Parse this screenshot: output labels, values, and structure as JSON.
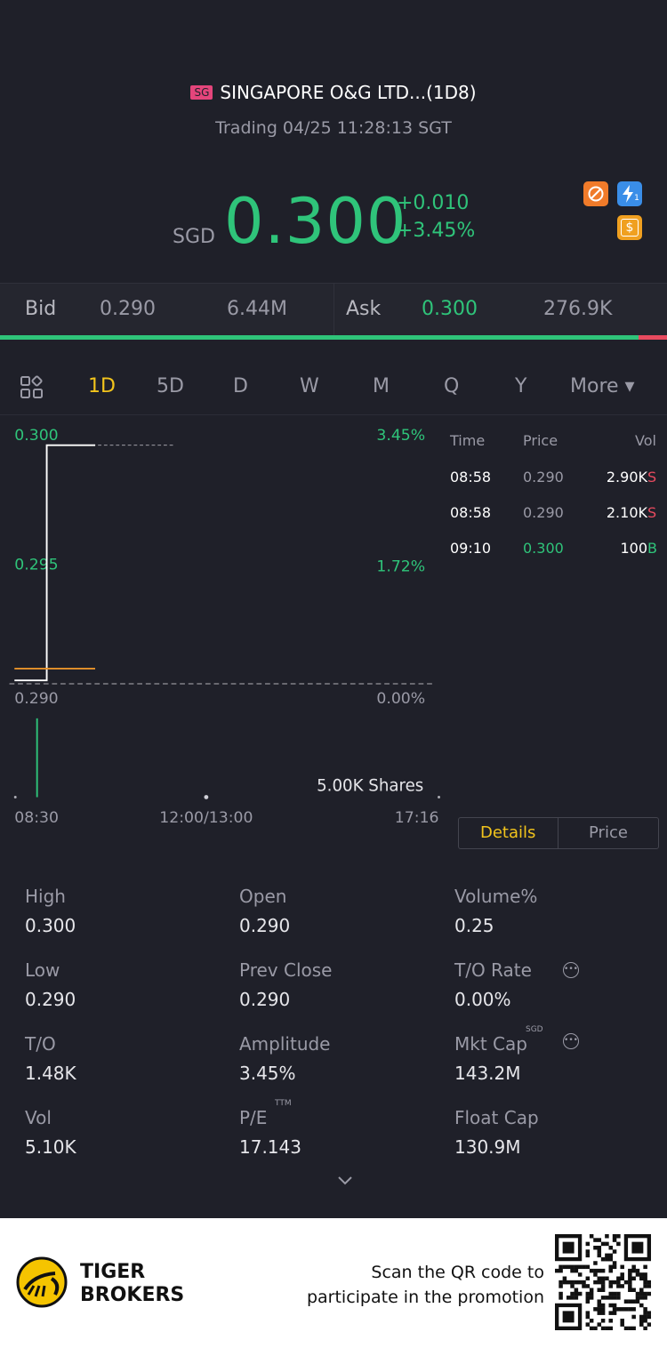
{
  "header": {
    "market_badge": "SG",
    "title": "SINGAPORE O&G LTD...(1D8)",
    "subtitle": "Trading 04/25 11:28:13 SGT"
  },
  "quote": {
    "currency": "SGD",
    "price": "0.300",
    "change": "+0.010",
    "change_pct": "+3.45%",
    "icons": [
      "no-short-icon",
      "flash-icon",
      "dollar-icon"
    ],
    "icon_flash_sub": "1",
    "icon_money_glyph": "$"
  },
  "bidask": {
    "bid_label": "Bid",
    "bid_price": "0.290",
    "bid_size": "6.44M",
    "ask_label": "Ask",
    "ask_price": "0.300",
    "ask_size": "276.9K",
    "bid_ratio": 0.957
  },
  "tabs": {
    "items": [
      "1D",
      "5D",
      "D",
      "W",
      "M",
      "Q",
      "Y",
      "More ▾"
    ],
    "active": "1D"
  },
  "chart_data": {
    "type": "line",
    "y_labels_left": [
      "0.300",
      "0.295",
      "0.290"
    ],
    "y_labels_right": [
      "3.45%",
      "1.72%",
      "0.00%"
    ],
    "x_labels": [
      "08:30",
      "12:00/13:00",
      "17:16"
    ],
    "volume_label": "5.00K Shares",
    "ylim": [
      0.29,
      0.3
    ],
    "series": [
      {
        "x": [
          "08:30",
          "08:58",
          "09:00",
          "09:10",
          "10:10"
        ],
        "values": [
          0.29,
          0.29,
          0.29,
          0.3,
          0.3
        ]
      }
    ],
    "avg_line": 0.2905,
    "prev_close": 0.29,
    "volume_bar": {
      "x": "08:58",
      "value": 5.0
    }
  },
  "trades": {
    "headers": [
      "Time",
      "Price",
      "Vol"
    ],
    "rows": [
      {
        "time": "08:58",
        "price": "0.290",
        "vol": "2.90K",
        "side": "S"
      },
      {
        "time": "08:58",
        "price": "0.290",
        "vol": "2.10K",
        "side": "S"
      },
      {
        "time": "09:10",
        "price": "0.300",
        "vol": "100",
        "side": "B"
      }
    ]
  },
  "segment": {
    "details": "Details",
    "price": "Price"
  },
  "stats": {
    "high_label": "High",
    "high": "0.300",
    "open_label": "Open",
    "open": "0.290",
    "volpct_label": "Volume%",
    "volpct": "0.25",
    "low_label": "Low",
    "low": "0.290",
    "prevclose_label": "Prev Close",
    "prevclose": "0.290",
    "torate_label": "T/O Rate",
    "torate": "0.00%",
    "to_label": "T/O",
    "to": "1.48K",
    "amplitude_label": "Amplitude",
    "amplitude": "3.45%",
    "mktcap_label": "Mkt Cap",
    "mktcap_sup": "SGD",
    "mktcap": "143.2M",
    "vol_label": "Vol",
    "vol": "5.10K",
    "pe_label": "P/E",
    "pe_sup": "TTM",
    "pe": "17.143",
    "floatcap_label": "Float Cap",
    "floatcap": "130.9M"
  },
  "footer": {
    "brand_line1": "TIGER",
    "brand_line2": "BROKERS",
    "promo_line1": "Scan the QR code to",
    "promo_line2": "participate in the promotion"
  },
  "colors": {
    "background": "#1f2029",
    "up": "#2fc47a",
    "down": "#e84a5f",
    "accent": "#f2c41c",
    "avg_line": "#e8932a"
  }
}
